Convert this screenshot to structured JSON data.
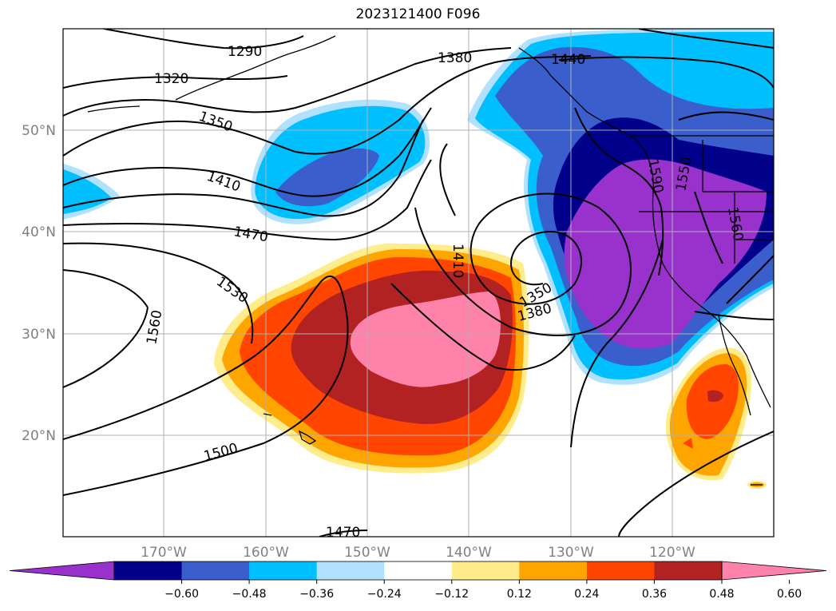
{
  "title": "2023121400 F096",
  "map": {
    "lat_labels": [
      "50°N",
      "40°N",
      "30°N",
      "20°N"
    ],
    "lon_labels": [
      "170°W",
      "160°W",
      "150°W",
      "140°W",
      "130°W",
      "120°W"
    ],
    "contour_labels": [
      "1290",
      "1320",
      "1350",
      "1380",
      "1410",
      "1440",
      "1470",
      "1500",
      "1530",
      "1560",
      "1590",
      "1550",
      "1560",
      "1410",
      "1350",
      "1380",
      "1470"
    ]
  },
  "colorbar": {
    "ticks": [
      "−0.60",
      "−0.48",
      "−0.36",
      "−0.24",
      "−0.12",
      "0.12",
      "0.24",
      "0.36",
      "0.48",
      "0.60"
    ],
    "colors": [
      "#9932cc",
      "#00008b",
      "#3a5fcd",
      "#00bfff",
      "#b0e2ff",
      "#ffffff",
      "#ffec8b",
      "#ffa500",
      "#ff4500",
      "#b22222",
      "#ff82ab"
    ]
  }
}
